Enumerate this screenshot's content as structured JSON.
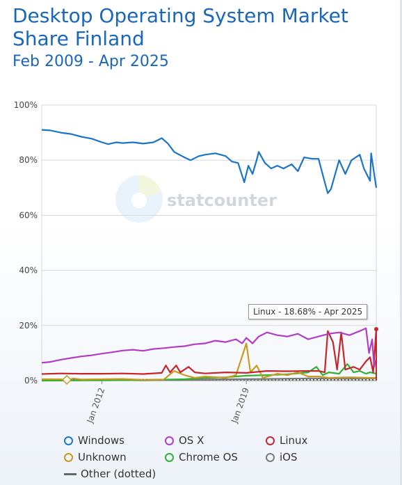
{
  "header": {
    "title": "Desktop Operating System Market Share Finland",
    "subtitle": "Feb 2009 - Apr 2025"
  },
  "watermark": {
    "text": "statcounter",
    "icon": "statcounter-logo-icon"
  },
  "tooltip": {
    "text": "Linux - 18.68% - Apr 2025"
  },
  "chart_data": {
    "type": "line",
    "title": "Desktop Operating System Market Share Finland",
    "subtitle": "Feb 2009 - Apr 2025",
    "xlabel": "",
    "ylabel": "",
    "x_range": [
      "2009-02",
      "2025-04"
    ],
    "ylim": [
      0,
      100
    ],
    "y_ticks": [
      "0%",
      "20%",
      "40%",
      "60%",
      "80%",
      "100%"
    ],
    "x_ticks": [
      "Jan 2012",
      "Jan 2019"
    ],
    "grid": true,
    "legend_position": "bottom",
    "series": [
      {
        "name": "Windows",
        "color": "#1a74c8",
        "style": "solid",
        "points": [
          [
            2009.08,
            91
          ],
          [
            2009.5,
            90.8
          ],
          [
            2010,
            90
          ],
          [
            2010.5,
            89.5
          ],
          [
            2011,
            88.5
          ],
          [
            2011.5,
            87.8
          ],
          [
            2012,
            86.5
          ],
          [
            2012.3,
            85.8
          ],
          [
            2012.7,
            86.5
          ],
          [
            2013,
            86.2
          ],
          [
            2013.5,
            86.5
          ],
          [
            2014,
            86
          ],
          [
            2014.5,
            86.5
          ],
          [
            2014.9,
            88
          ],
          [
            2015.2,
            86
          ],
          [
            2015.5,
            83
          ],
          [
            2016,
            81
          ],
          [
            2016.3,
            80
          ],
          [
            2016.7,
            81.5
          ],
          [
            2017,
            82
          ],
          [
            2017.5,
            82.5
          ],
          [
            2018,
            81.5
          ],
          [
            2018.3,
            79.5
          ],
          [
            2018.6,
            79
          ],
          [
            2018.9,
            72
          ],
          [
            2019.1,
            78
          ],
          [
            2019.3,
            75
          ],
          [
            2019.5,
            80
          ],
          [
            2019.6,
            83
          ],
          [
            2019.9,
            79
          ],
          [
            2020.2,
            77
          ],
          [
            2020.5,
            78
          ],
          [
            2020.8,
            77
          ],
          [
            2021.2,
            78.5
          ],
          [
            2021.5,
            76
          ],
          [
            2021.8,
            81
          ],
          [
            2022.2,
            80.5
          ],
          [
            2022.5,
            80.5
          ],
          [
            2022.8,
            72
          ],
          [
            2022.95,
            68
          ],
          [
            2023.1,
            69.5
          ],
          [
            2023.5,
            80
          ],
          [
            2023.8,
            75
          ],
          [
            2024.1,
            80
          ],
          [
            2024.5,
            82
          ],
          [
            2024.7,
            77
          ],
          [
            2025.0,
            72.5
          ],
          [
            2025.05,
            82.5
          ],
          [
            2025.2,
            75
          ],
          [
            2025.3,
            70
          ]
        ]
      },
      {
        "name": "OS X",
        "color": "#b13dc4",
        "style": "solid",
        "points": [
          [
            2009.08,
            6.5
          ],
          [
            2009.5,
            6.8
          ],
          [
            2010,
            7.6
          ],
          [
            2010.5,
            8.2
          ],
          [
            2011,
            8.8
          ],
          [
            2011.5,
            9.2
          ],
          [
            2012,
            9.8
          ],
          [
            2012.5,
            10.3
          ],
          [
            2013,
            10.9
          ],
          [
            2013.5,
            11.2
          ],
          [
            2014,
            10.8
          ],
          [
            2014.5,
            11.5
          ],
          [
            2015,
            11.8
          ],
          [
            2015.5,
            12.2
          ],
          [
            2016,
            12.5
          ],
          [
            2016.5,
            13.2
          ],
          [
            2017,
            13.5
          ],
          [
            2017.5,
            14.5
          ],
          [
            2018,
            14
          ],
          [
            2018.5,
            15
          ],
          [
            2018.8,
            13.5
          ],
          [
            2019,
            15.5
          ],
          [
            2019.3,
            13.5
          ],
          [
            2019.6,
            16
          ],
          [
            2020,
            17.5
          ],
          [
            2020.5,
            16.5
          ],
          [
            2021,
            16
          ],
          [
            2021.5,
            17
          ],
          [
            2022,
            15
          ],
          [
            2022.5,
            16
          ],
          [
            2023,
            17
          ],
          [
            2023.5,
            17.5
          ],
          [
            2024,
            16.5
          ],
          [
            2024.5,
            18
          ],
          [
            2024.8,
            19
          ],
          [
            2024.95,
            10
          ],
          [
            2025.1,
            15
          ],
          [
            2025.2,
            5
          ],
          [
            2025.3,
            8
          ]
        ]
      },
      {
        "name": "Linux",
        "color": "#c4262c",
        "style": "solid",
        "points": [
          [
            2009.08,
            2.4
          ],
          [
            2010,
            2.6
          ],
          [
            2011,
            2.5
          ],
          [
            2012,
            2.5
          ],
          [
            2013,
            2.6
          ],
          [
            2014,
            2.4
          ],
          [
            2014.9,
            2.8
          ],
          [
            2015.1,
            5.5
          ],
          [
            2015.3,
            3
          ],
          [
            2015.6,
            5.5
          ],
          [
            2015.8,
            3
          ],
          [
            2016.2,
            5
          ],
          [
            2016.5,
            3
          ],
          [
            2017,
            2.6
          ],
          [
            2018,
            3
          ],
          [
            2019,
            2.8
          ],
          [
            2020,
            3.5
          ],
          [
            2021,
            3.4
          ],
          [
            2022,
            3.5
          ],
          [
            2022.5,
            3.5
          ],
          [
            2022.8,
            3
          ],
          [
            2022.95,
            18
          ],
          [
            2023.2,
            14
          ],
          [
            2023.4,
            4
          ],
          [
            2023.6,
            17.5
          ],
          [
            2023.8,
            4
          ],
          [
            2024.2,
            5
          ],
          [
            2024.5,
            4
          ],
          [
            2024.8,
            7
          ],
          [
            2025.0,
            8.5
          ],
          [
            2025.15,
            3
          ],
          [
            2025.3,
            18.68
          ]
        ]
      },
      {
        "name": "Unknown",
        "color": "#c89a1e",
        "style": "solid",
        "points": [
          [
            2009.08,
            0.5
          ],
          [
            2010,
            0.5
          ],
          [
            2010.3,
            0
          ],
          [
            2010.6,
            0.8
          ],
          [
            2011,
            0.4
          ],
          [
            2012,
            0.5
          ],
          [
            2013,
            0.6
          ],
          [
            2014,
            0.3
          ],
          [
            2015,
            0.4
          ],
          [
            2015.5,
            3.5
          ],
          [
            2016,
            2
          ],
          [
            2016.5,
            1
          ],
          [
            2017,
            1.5
          ],
          [
            2018,
            1
          ],
          [
            2018.5,
            2
          ],
          [
            2019,
            13.5
          ],
          [
            2019.2,
            3
          ],
          [
            2019.5,
            5.5
          ],
          [
            2019.8,
            1
          ],
          [
            2020.5,
            2.5
          ],
          [
            2021,
            2
          ],
          [
            2021.5,
            3
          ],
          [
            2022,
            1.5
          ],
          [
            2022.5,
            1.5
          ],
          [
            2023,
            1
          ],
          [
            2024,
            1.2
          ],
          [
            2025,
            1
          ],
          [
            2025.3,
            1
          ]
        ]
      },
      {
        "name": "Chrome OS",
        "color": "#30b130",
        "style": "solid",
        "points": [
          [
            2009.08,
            0
          ],
          [
            2012,
            0.1
          ],
          [
            2014,
            0.2
          ],
          [
            2016,
            0.5
          ],
          [
            2017,
            1
          ],
          [
            2018,
            1.2
          ],
          [
            2019,
            1.8
          ],
          [
            2020,
            2
          ],
          [
            2021,
            2.3
          ],
          [
            2022,
            3
          ],
          [
            2022.4,
            5
          ],
          [
            2022.7,
            2
          ],
          [
            2023,
            3
          ],
          [
            2023.5,
            2.5
          ],
          [
            2023.9,
            6
          ],
          [
            2024.2,
            3
          ],
          [
            2024.5,
            3.5
          ],
          [
            2024.8,
            2.5
          ],
          [
            2025.0,
            3
          ],
          [
            2025.3,
            2.5
          ]
        ]
      },
      {
        "name": "iOS",
        "color": "#7a7a7a",
        "style": "solid",
        "points": [
          [
            2009.08,
            0
          ],
          [
            2012,
            0.3
          ],
          [
            2014,
            0.1
          ],
          [
            2016,
            0.3
          ],
          [
            2018,
            0.5
          ],
          [
            2020,
            0.6
          ],
          [
            2022,
            0.8
          ],
          [
            2024,
            0.7
          ],
          [
            2025.3,
            0.8
          ]
        ]
      },
      {
        "name": "Other (dotted)",
        "color": "#555555",
        "style": "dotted",
        "points": [
          [
            2009.08,
            0.2
          ],
          [
            2012,
            0.3
          ],
          [
            2015,
            0.3
          ],
          [
            2018,
            0.4
          ],
          [
            2021,
            0.4
          ],
          [
            2025.3,
            0.4
          ]
        ]
      }
    ]
  }
}
